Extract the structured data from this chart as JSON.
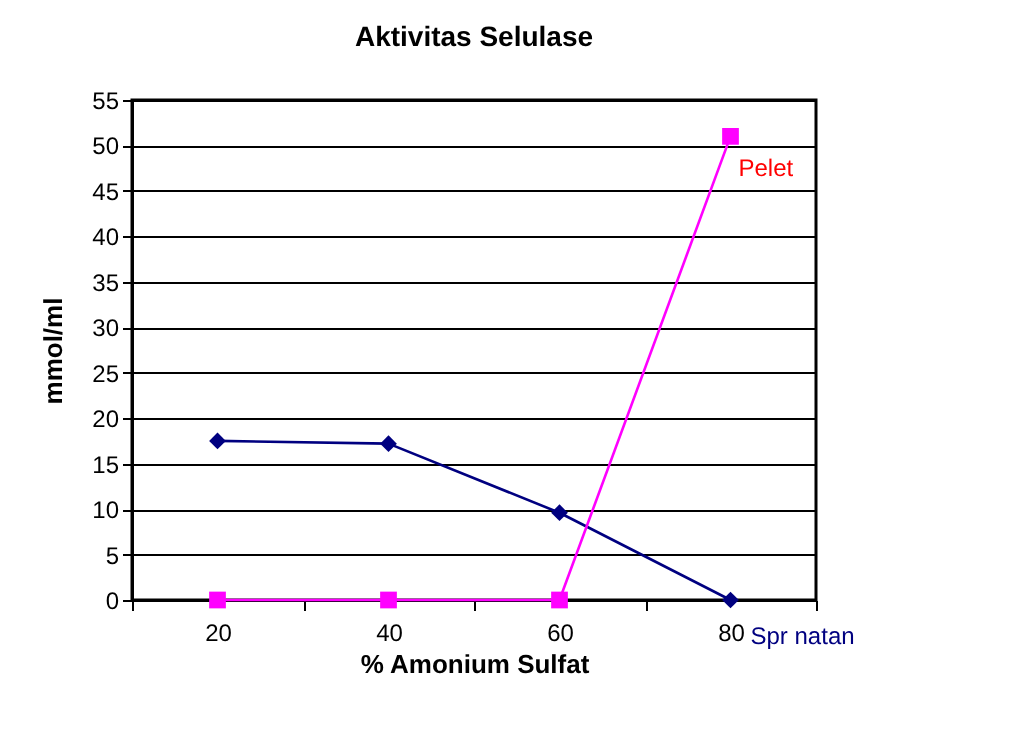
{
  "chart_data": {
    "type": "line",
    "title": "Aktivitas Selulase",
    "xlabel": "% Amonium Sulfat",
    "ylabel": "mmol/ml",
    "categories": [
      "20",
      "40",
      "60",
      "80"
    ],
    "series": [
      {
        "name": "Spr natan",
        "color": "#000080",
        "values": [
          17.5,
          17.2,
          9.6,
          0
        ],
        "marker": "diamond"
      },
      {
        "name": "Pelet",
        "color": "#ff00ff",
        "values": [
          0,
          0,
          0,
          51
        ],
        "marker": "square"
      }
    ],
    "ylim": [
      0,
      55
    ],
    "yticks": [
      0,
      5,
      10,
      15,
      20,
      25,
      30,
      35,
      40,
      45,
      50,
      55
    ],
    "grid": "y"
  }
}
